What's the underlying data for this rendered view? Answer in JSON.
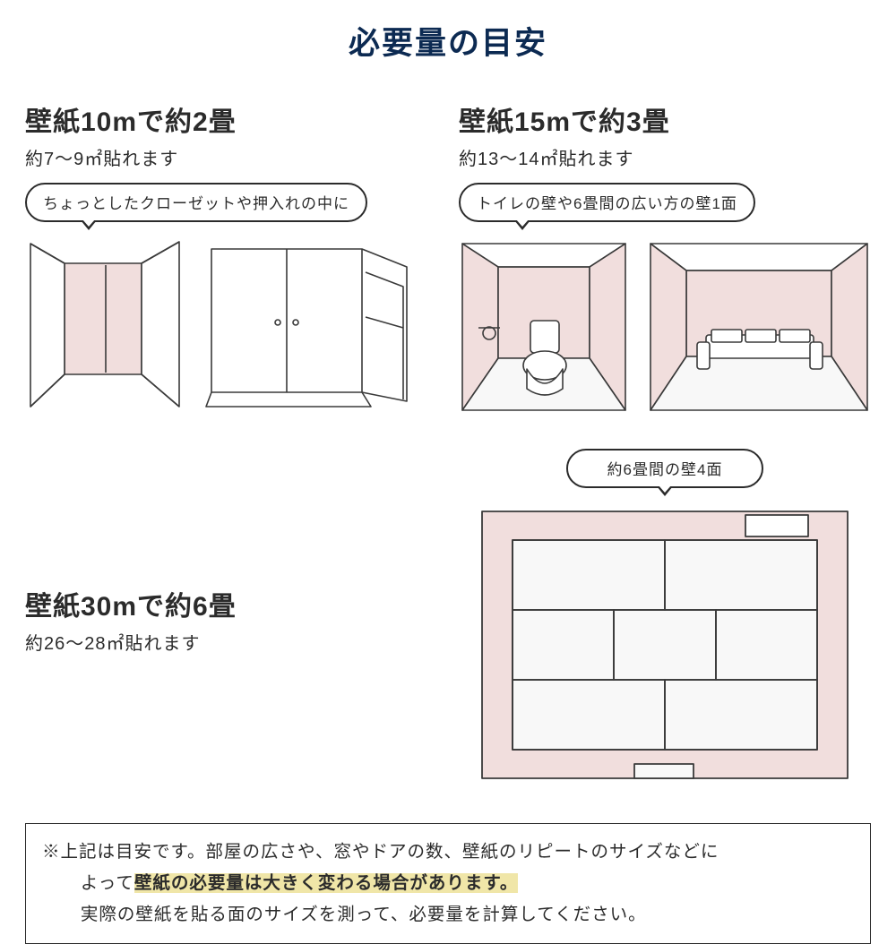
{
  "colors": {
    "title": "#0c2a52",
    "heading": "#2b2b2b",
    "body": "#2b2b2b",
    "bubble_border": "#2b2b2b",
    "bubble_text": "#2b2b2b",
    "illus_wall": "#f1dedd",
    "illus_line": "#3a3a3a",
    "illus_light": "#f8f8f8",
    "note_border": "#2b2b2b",
    "highlight_bg": "#f0e6a8"
  },
  "title": "必要量の目安",
  "sections": {
    "s10m": {
      "heading": "壁紙10mで約2畳",
      "sub": "約7〜9㎡貼れます",
      "bubble": "ちょっとしたクローゼットや押入れの中に"
    },
    "s15m": {
      "heading": "壁紙15mで約3畳",
      "sub": "約13〜14㎡貼れます",
      "bubble": "トイレの壁や6畳間の広い方の壁1面"
    },
    "s30m": {
      "heading": "壁紙30mで約6畳",
      "sub": "約26〜28㎡貼れます"
    },
    "s6jo": {
      "bubble": "約6畳間の壁4面"
    }
  },
  "note": {
    "line1_a": "※上記は目安です。部屋の広さや、窓やドアの数、壁紙のリピートのサイズなどに",
    "line2_a": "よって",
    "line2_hl": "壁紙の必要量は大きく変わる場合があります。",
    "line3": "実際の壁紙を貼る面のサイズを測って、必要量を計算してください。"
  }
}
